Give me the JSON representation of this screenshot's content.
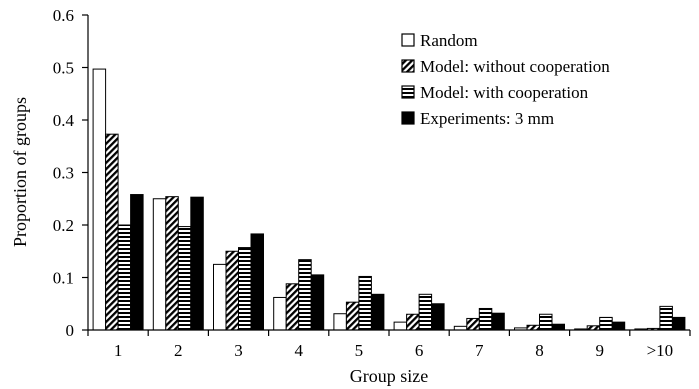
{
  "chart_data": {
    "type": "bar",
    "title": "",
    "xlabel": "Group size",
    "ylabel": "Proportion of groups",
    "ylim": [
      0,
      0.6
    ],
    "yticks": [
      "0",
      "0.1",
      "0.2",
      "0.3",
      "0.4",
      "0.5",
      "0.6"
    ],
    "grid": false,
    "legend_position": "top-right",
    "categories": [
      "1",
      "2",
      "3",
      "4",
      "5",
      "6",
      "7",
      "8",
      "9",
      ">10"
    ],
    "series": [
      {
        "name": "Random",
        "pattern": "white",
        "values": [
          0.497,
          0.25,
          0.125,
          0.062,
          0.031,
          0.015,
          0.007,
          0.004,
          0.002,
          0.002
        ]
      },
      {
        "name": "Model: without cooperation",
        "pattern": "diagonal",
        "values": [
          0.373,
          0.254,
          0.15,
          0.088,
          0.053,
          0.03,
          0.022,
          0.009,
          0.008,
          0.003
        ]
      },
      {
        "name": "Model: with cooperation",
        "pattern": "horizontal",
        "values": [
          0.2,
          0.197,
          0.157,
          0.134,
          0.102,
          0.068,
          0.041,
          0.03,
          0.024,
          0.045
        ]
      },
      {
        "name": "Experiments: 3 mm",
        "pattern": "black",
        "values": [
          0.258,
          0.253,
          0.183,
          0.105,
          0.068,
          0.05,
          0.032,
          0.011,
          0.015,
          0.024
        ]
      }
    ],
    "colors": {
      "stroke": "#000000",
      "fill_white": "#ffffff",
      "fill_black": "#000000"
    }
  }
}
